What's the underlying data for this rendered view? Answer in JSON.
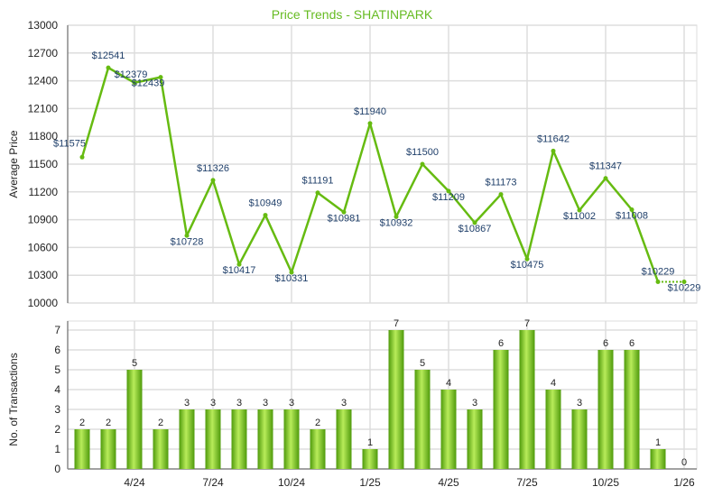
{
  "chart_data": [
    {
      "type": "line",
      "title": "Price Trends - SHATINPARK",
      "ylabel": "Average Price",
      "ylim": [
        10000,
        13000
      ],
      "yticks": [
        10000,
        10300,
        10600,
        10900,
        11200,
        11500,
        11800,
        12100,
        12400,
        12700,
        13000
      ],
      "x": [
        "2/24",
        "3/24",
        "4/24",
        "5/24",
        "6/24",
        "7/24",
        "8/24",
        "9/24",
        "10/24",
        "11/24",
        "12/24",
        "1/25",
        "2/25",
        "3/25",
        "4/25",
        "5/25",
        "6/25",
        "7/25",
        "8/25",
        "9/25",
        "10/25",
        "11/25",
        "12/25",
        "1/26"
      ],
      "values": [
        11575,
        12541,
        12379,
        12439,
        10728,
        11326,
        10417,
        10949,
        10331,
        11191,
        10981,
        11940,
        10932,
        11500,
        11209,
        10867,
        11173,
        10475,
        11642,
        11002,
        11347,
        11008,
        10229,
        10229
      ],
      "labels": [
        "$11575",
        "$12541",
        "$12379",
        "$12439",
        "$10728",
        "$11326",
        "$10417",
        "$10949",
        "$10331",
        "$11191",
        "$10981",
        "$11940",
        "$10932",
        "$11500",
        "$11209",
        "$10867",
        "$11173",
        "$10475",
        "$11642",
        "$11002",
        "$11347",
        "$11008",
        "$10229",
        "$10229"
      ],
      "dotted_last_segment": true,
      "color": "#66bb11",
      "grid": true
    },
    {
      "type": "bar",
      "ylabel": "No. of Transactions",
      "ylim": [
        0,
        7
      ],
      "yticks": [
        0,
        1,
        2,
        3,
        4,
        5,
        6,
        7
      ],
      "x": [
        "2/24",
        "3/24",
        "4/24",
        "5/24",
        "6/24",
        "7/24",
        "8/24",
        "9/24",
        "10/24",
        "11/24",
        "12/24",
        "1/25",
        "2/25",
        "3/25",
        "4/25",
        "5/25",
        "6/25",
        "7/25",
        "8/25",
        "9/25",
        "10/25",
        "11/25",
        "12/25",
        "1/26"
      ],
      "values": [
        2,
        2,
        5,
        2,
        3,
        3,
        3,
        3,
        3,
        2,
        3,
        1,
        7,
        5,
        4,
        3,
        6,
        7,
        4,
        3,
        6,
        6,
        1,
        0
      ],
      "xtick_labels": [
        "4/24",
        "7/24",
        "10/24",
        "1/25",
        "4/25",
        "7/25",
        "10/25",
        "1/26"
      ],
      "color": "#77c020",
      "grid": true
    }
  ]
}
